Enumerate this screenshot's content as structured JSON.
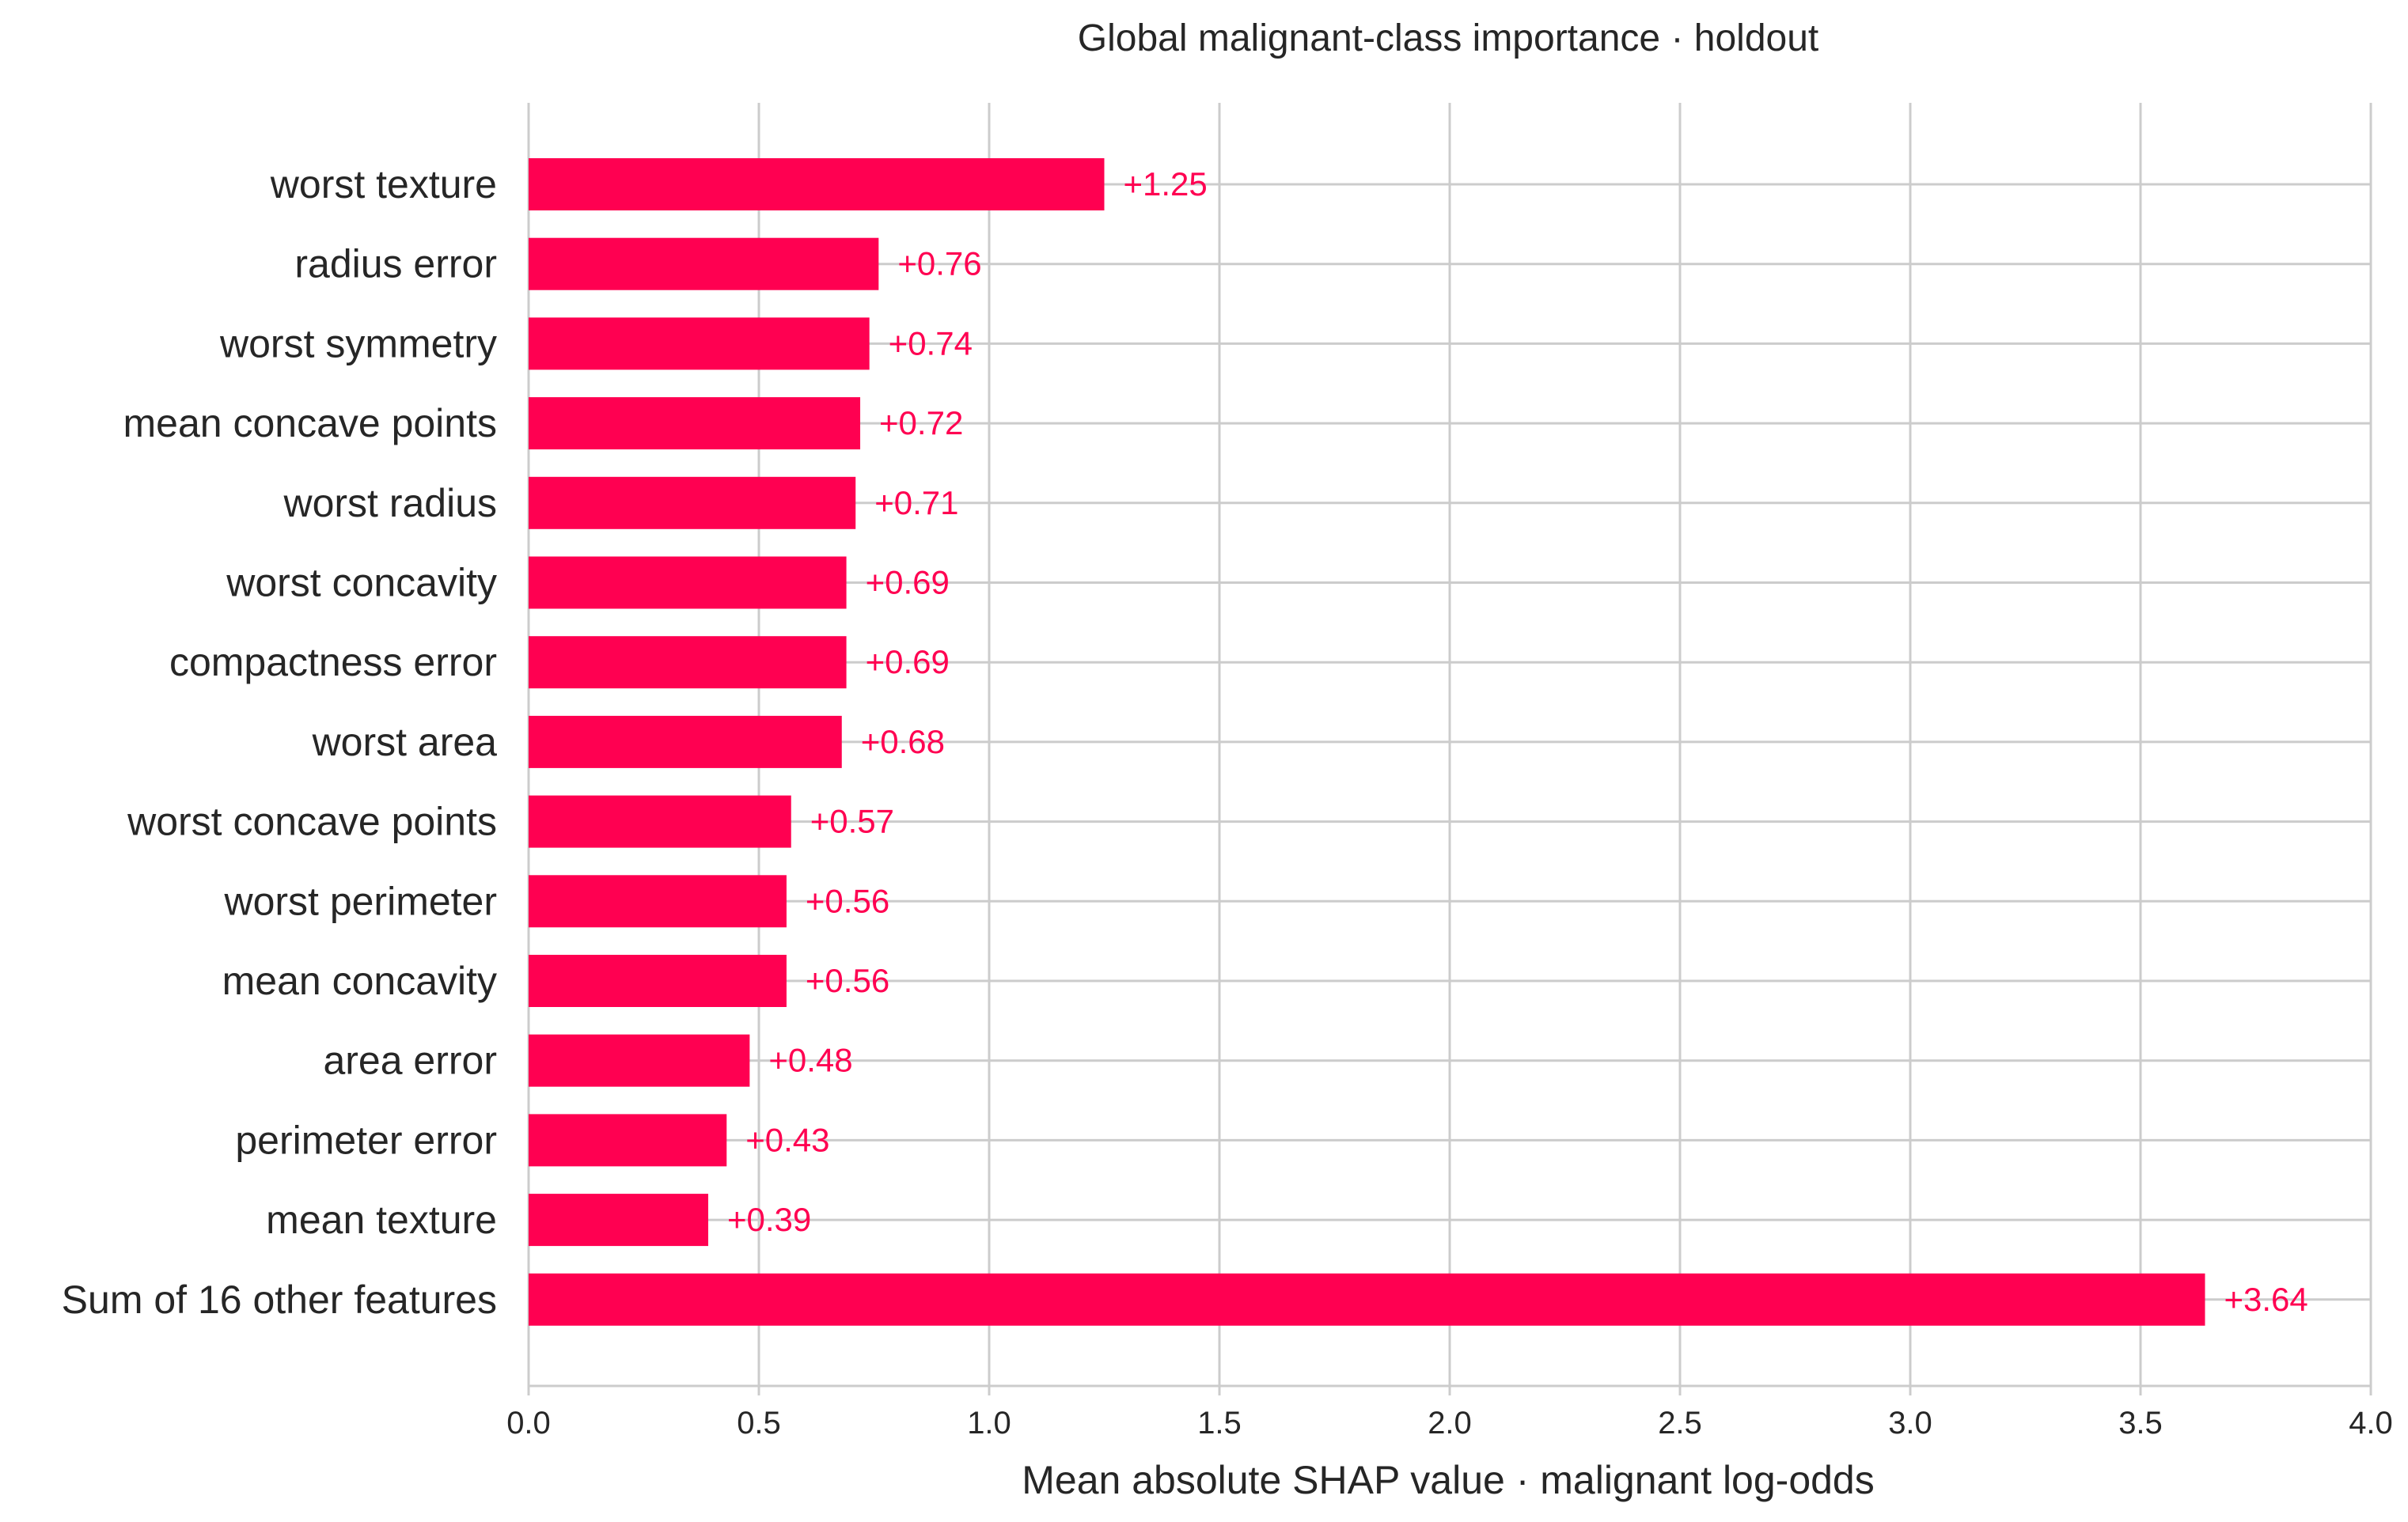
{
  "chart_data": {
    "type": "bar",
    "orientation": "horizontal",
    "title": "Global malignant-class importance · holdout",
    "xlabel": "Mean absolute SHAP value · malignant log-odds",
    "ylabel": "",
    "xlim": [
      0.0,
      4.0
    ],
    "xticks": [
      "0.0",
      "0.5",
      "1.0",
      "1.5",
      "2.0",
      "2.5",
      "3.0",
      "3.5",
      "4.0"
    ],
    "grid": true,
    "bar_color": "#ff0051",
    "categories": [
      "worst texture",
      "radius error",
      "worst symmetry",
      "mean concave points",
      "worst radius",
      "worst concavity",
      "compactness error",
      "worst area",
      "worst concave points",
      "worst perimeter",
      "mean concavity",
      "area error",
      "perimeter error",
      "mean texture",
      "Sum of 16 other features"
    ],
    "values": [
      1.25,
      0.76,
      0.74,
      0.72,
      0.71,
      0.69,
      0.69,
      0.68,
      0.57,
      0.56,
      0.56,
      0.48,
      0.43,
      0.39,
      3.64
    ],
    "value_labels": [
      "+1.25",
      "+0.76",
      "+0.74",
      "+0.72",
      "+0.71",
      "+0.69",
      "+0.69",
      "+0.68",
      "+0.57",
      "+0.56",
      "+0.56",
      "+0.48",
      "+0.43",
      "+0.39",
      "+3.64"
    ]
  }
}
